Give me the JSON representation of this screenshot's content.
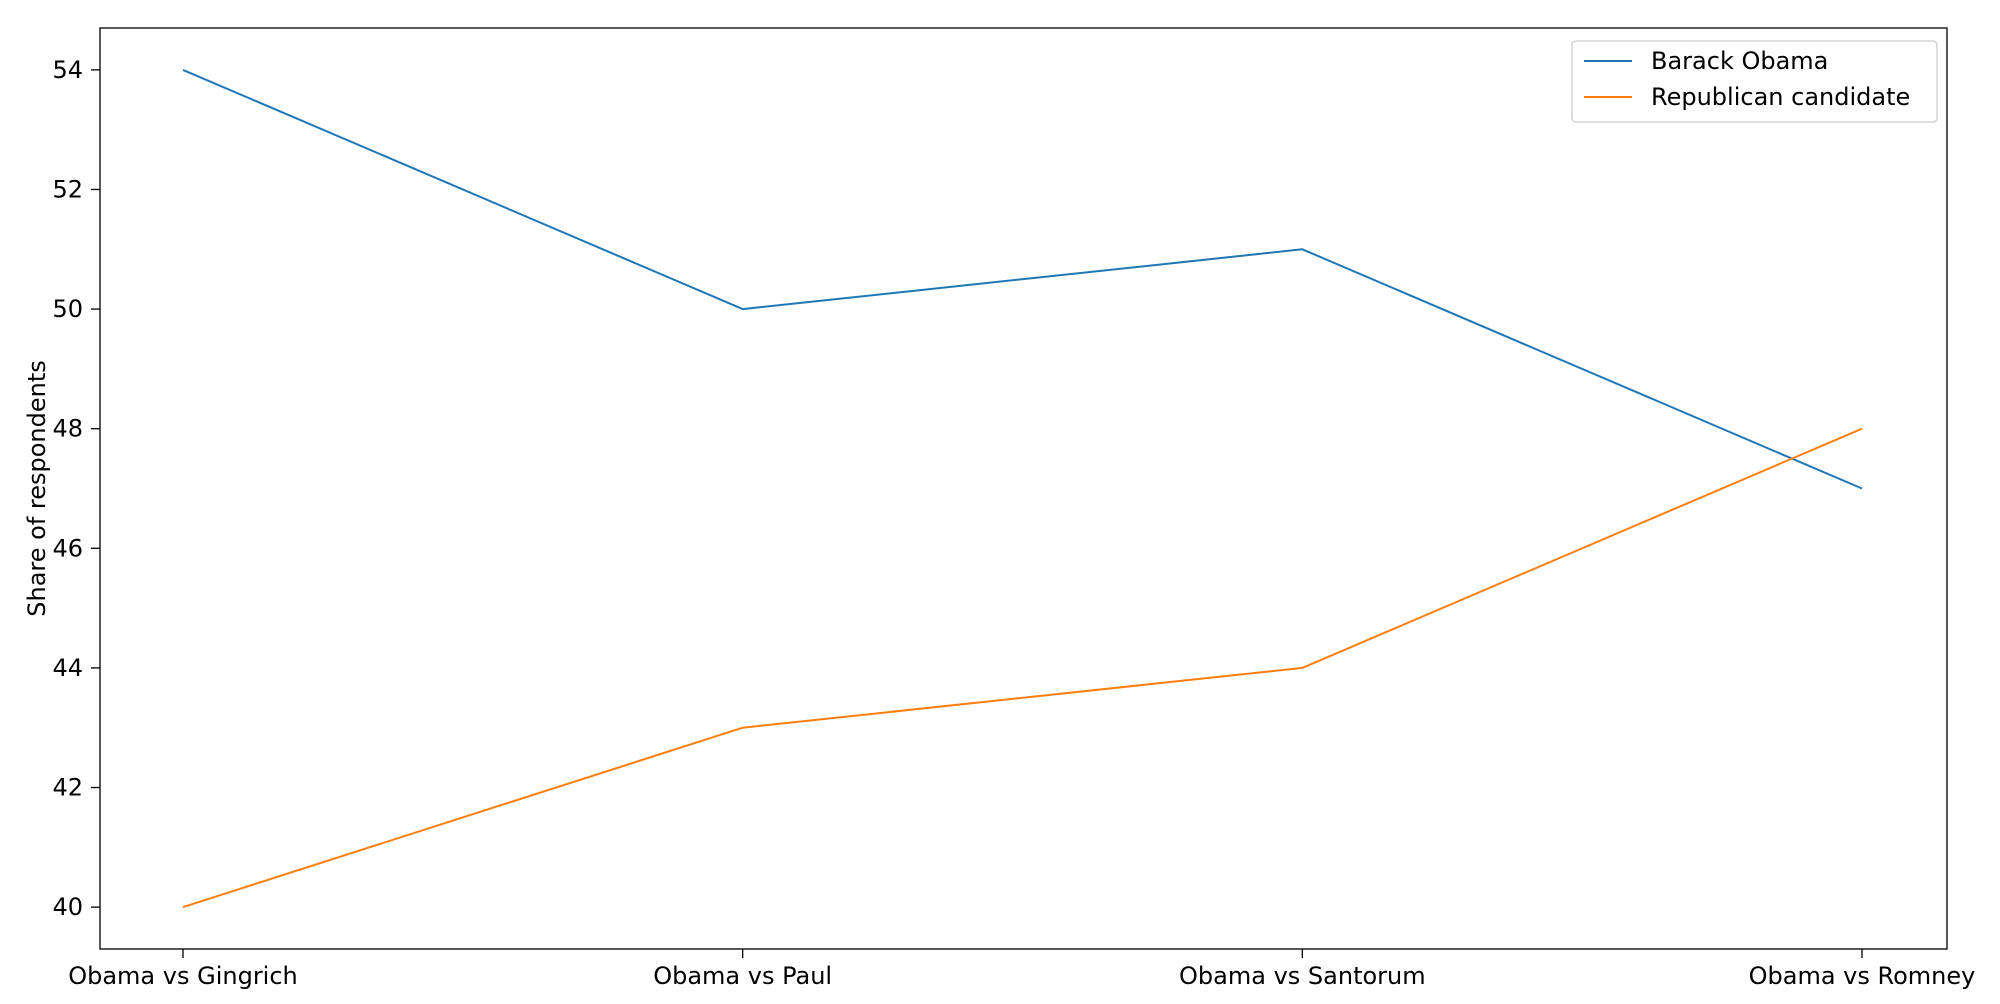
{
  "chart_data": {
    "type": "line",
    "title": "",
    "xlabel": "",
    "ylabel": "Share of respondents",
    "categories": [
      "Obama vs Gingrich",
      "Obama vs Paul",
      "Obama vs Santorum",
      "Obama vs Romney"
    ],
    "series": [
      {
        "name": "Barack Obama",
        "values": [
          54,
          50,
          51,
          47
        ],
        "color": "#1f77b4"
      },
      {
        "name": "Republican candidate",
        "values": [
          40,
          43,
          44,
          48
        ],
        "color": "#ff7f0e"
      }
    ],
    "ylim": [
      39.3,
      54.7
    ],
    "yticks": [
      40,
      42,
      44,
      46,
      48,
      50,
      52,
      54
    ],
    "grid": false,
    "legend": "top-right"
  }
}
